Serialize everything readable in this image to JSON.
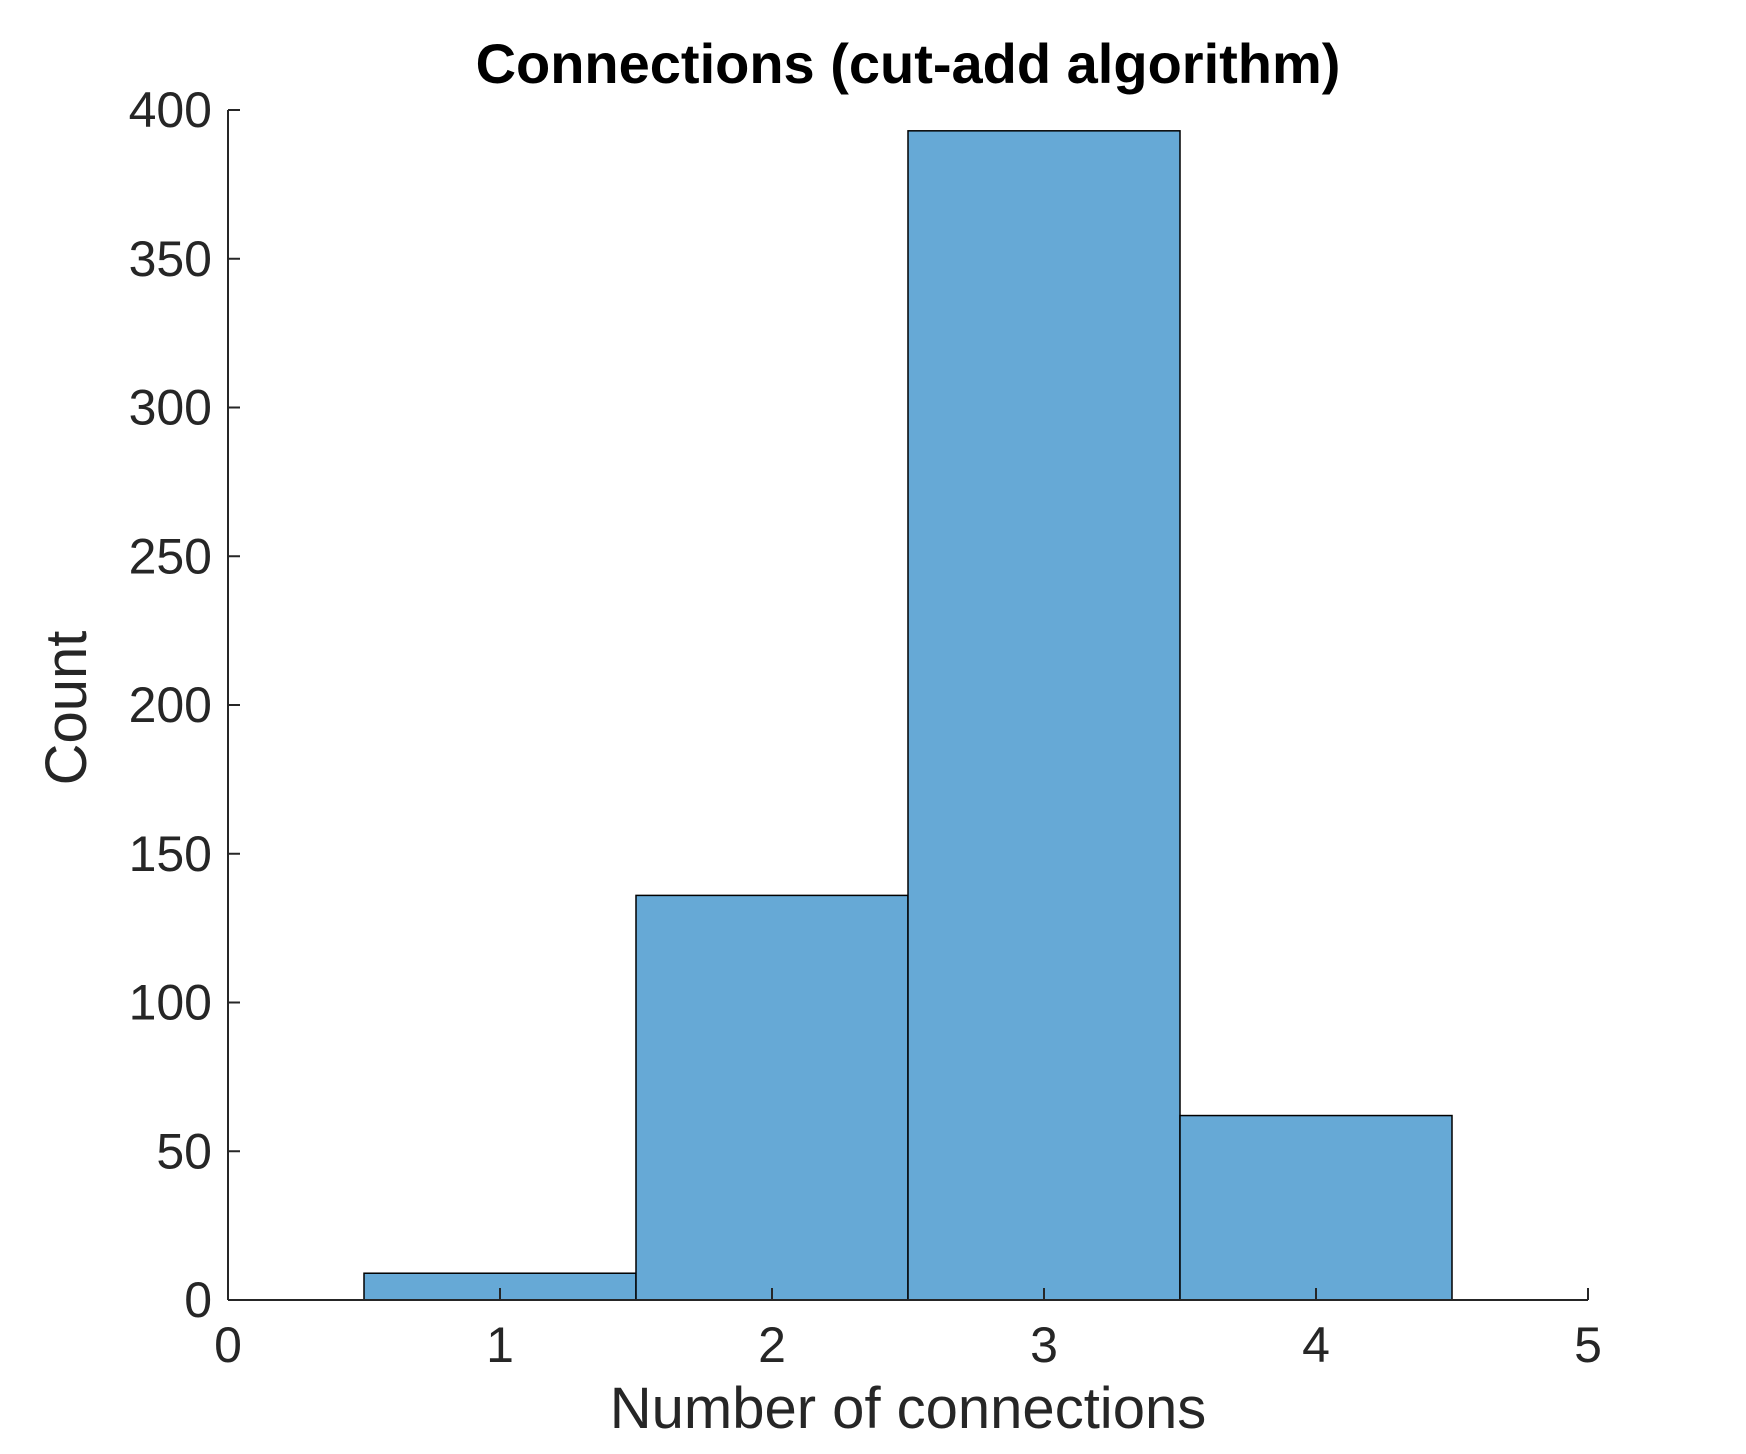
{
  "chart_data": {
    "type": "bar",
    "title": "Connections (cut-add algorithm)",
    "xlabel": "Number of connections",
    "ylabel": "Count",
    "xlim": [
      0,
      5
    ],
    "ylim": [
      0,
      400
    ],
    "xticks": [
      "0",
      "1",
      "2",
      "3",
      "4",
      "5"
    ],
    "yticks": [
      "0",
      "50",
      "100",
      "150",
      "200",
      "250",
      "300",
      "350",
      "400"
    ],
    "categories": [
      "1",
      "2",
      "3",
      "4"
    ],
    "x": [
      1,
      2,
      3,
      4
    ],
    "values": [
      9,
      136,
      393,
      62
    ],
    "bin_width": 1,
    "color": "#66a9d6",
    "edge_color": "#000000",
    "grid": false,
    "legend": "none"
  }
}
